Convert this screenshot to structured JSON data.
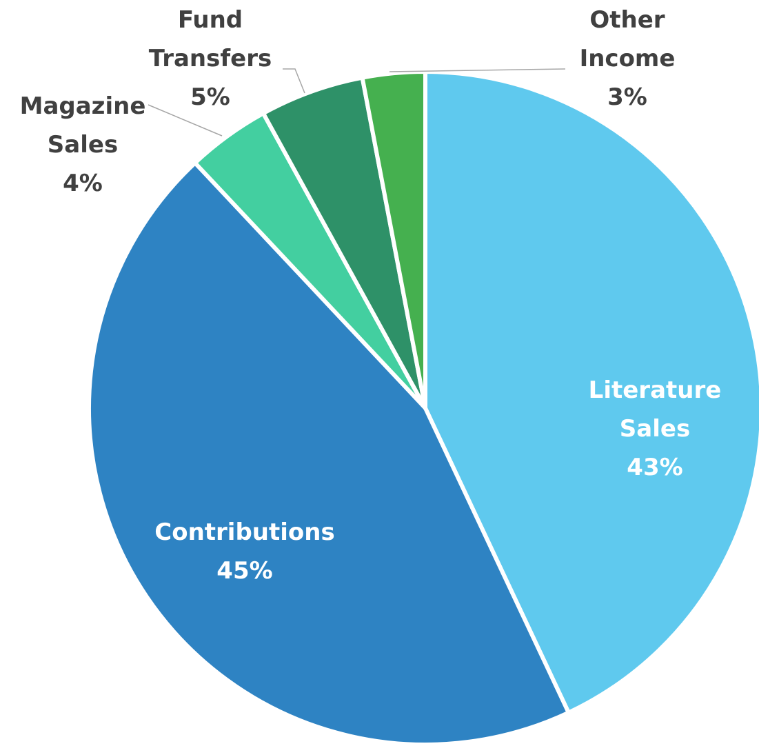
{
  "chart_data": {
    "type": "pie",
    "categories": [
      "Literature Sales",
      "Contributions",
      "Magazine Sales",
      "Fund Transfers",
      "Other Income"
    ],
    "values": [
      43,
      45,
      4,
      5,
      3
    ],
    "value_labels": [
      "43%",
      "45%",
      "4%",
      "5%",
      "3%"
    ],
    "colors": [
      "#5fc9ee",
      "#2e83c3",
      "#43cfa0",
      "#2e9168",
      "#45b04f"
    ]
  }
}
